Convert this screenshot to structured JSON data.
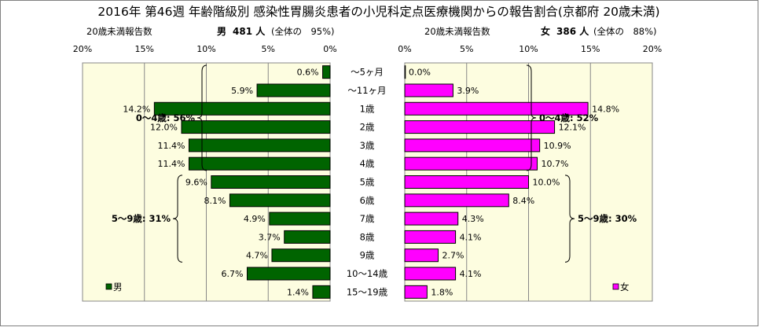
{
  "title": "2016年 第46週 年齢階級別 感染性胃腸炎患者の小児科定点医療機関からの報告割合(京都府 20歳未満)",
  "header": {
    "male": {
      "label": "20歳未満報告数",
      "sex": "男",
      "count": "481 人",
      "share": "(全体の　95%)"
    },
    "female": {
      "label": "20歳未満報告数",
      "sex": "女",
      "count": "386 人",
      "share": "(全体の　88%)"
    }
  },
  "colors": {
    "male": "#006400",
    "female": "#ff00ff",
    "male_bg": "#fdfde0",
    "female_bg": "#fdfde0"
  },
  "chart_data": [
    {
      "type": "bar",
      "orientation": "horizontal",
      "direction": "right-to-left",
      "categories": [
        "～5ヶ月",
        "～11ヶ月",
        "1歳",
        "2歳",
        "3歳",
        "4歳",
        "5歳",
        "6歳",
        "7歳",
        "8歳",
        "9歳",
        "10～14歳",
        "15～19歳"
      ],
      "series": [
        {
          "name": "男",
          "values": [
            0.6,
            5.9,
            14.2,
            12.0,
            11.4,
            11.4,
            9.6,
            8.1,
            4.9,
            3.7,
            4.7,
            6.7,
            1.4
          ]
        }
      ],
      "value_labels": [
        "0.6%",
        "5.9%",
        "14.2%",
        "12.0%",
        "11.4%",
        "11.4%",
        "9.6%",
        "8.1%",
        "4.9%",
        "3.7%",
        "4.7%",
        "6.7%",
        "1.4%"
      ],
      "xlim": [
        0,
        20
      ],
      "xticks": [
        "0%",
        "5%",
        "10%",
        "15%",
        "20%"
      ],
      "grid": true,
      "legend": "bottom-left",
      "annotations": [
        {
          "text": "0～4歳: 56%",
          "from": 0,
          "to": 5
        },
        {
          "text": "5～9歳: 31%",
          "from": 6,
          "to": 10
        }
      ]
    },
    {
      "type": "bar",
      "orientation": "horizontal",
      "direction": "left-to-right",
      "categories": [
        "～5ヶ月",
        "～11ヶ月",
        "1歳",
        "2歳",
        "3歳",
        "4歳",
        "5歳",
        "6歳",
        "7歳",
        "8歳",
        "9歳",
        "10～14歳",
        "15～19歳"
      ],
      "series": [
        {
          "name": "女",
          "values": [
            0.0,
            3.9,
            14.8,
            12.1,
            10.9,
            10.7,
            10.0,
            8.4,
            4.3,
            4.1,
            2.7,
            4.1,
            1.8
          ]
        }
      ],
      "value_labels": [
        "0.0%",
        "3.9%",
        "14.8%",
        "12.1%",
        "10.9%",
        "10.7%",
        "10.0%",
        "8.4%",
        "4.3%",
        "4.1%",
        "2.7%",
        "4.1%",
        "1.8%"
      ],
      "xlim": [
        0,
        20
      ],
      "xticks": [
        "0%",
        "5%",
        "10%",
        "15%",
        "20%"
      ],
      "grid": true,
      "legend": "bottom-right",
      "annotations": [
        {
          "text": "0～4歳: 52%",
          "from": 0,
          "to": 5
        },
        {
          "text": "5～9歳: 30%",
          "from": 6,
          "to": 10
        }
      ]
    }
  ]
}
